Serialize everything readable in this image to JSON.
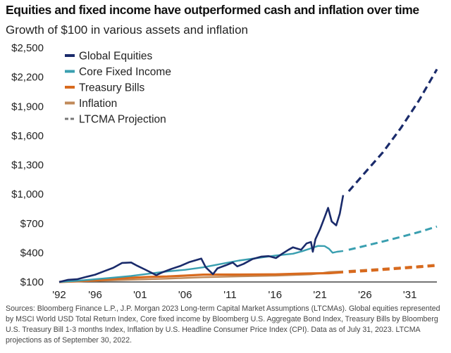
{
  "title": "Equities and fixed income have outperformed cash and inflation over time",
  "subtitle": "Growth of $100 in various assets and inflation",
  "footnote": "Sources: Bloomberg Finance L.P., J.P. Morgan 2023 Long-term Capital Market Assumptions (LTCMAs). Global equities represented by MSCI World USD Total Return Index, Core fixed income by Bloomberg U.S. Aggregate Bond Index, Treasury Bills by Bloomberg U.S. Treasury Bill 1-3 months Index, Inflation by U.S. Headline Consumer Price Index (CPI). Data as of July 31, 2023. LTCMA projections as of September 30, 2022.",
  "chart_data": {
    "type": "line",
    "title": "Equities and fixed income have outperformed cash and inflation over time",
    "subtitle": "Growth of $100 in various assets and inflation",
    "xlabel": "",
    "ylabel": "",
    "xlim": [
      1992,
      2034
    ],
    "ylim": [
      100,
      2500
    ],
    "x_ticks": [
      1992,
      1996,
      2001,
      2006,
      2011,
      2016,
      2021,
      2026,
      2031
    ],
    "x_tick_labels": [
      "'92",
      "'96",
      "'01",
      "'06",
      "'11",
      "'16",
      "'21",
      "'26",
      "'31"
    ],
    "y_ticks": [
      100,
      400,
      700,
      1000,
      1300,
      1600,
      1900,
      2200,
      2500
    ],
    "y_tick_labels": [
      "$100",
      "$400",
      "$700",
      "$1,000",
      "$1,300",
      "$1,600",
      "$1,900",
      "$2,200",
      "$2,500"
    ],
    "grid": false,
    "legend_position": "top-left",
    "series": [
      {
        "name": "Global Equities",
        "color": "#1a2b6b",
        "style": "solid",
        "x": [
          1992,
          1993,
          1994,
          1995,
          1996,
          1997,
          1998,
          1999,
          2000,
          2000.7,
          2001.5,
          2002.8,
          2003.5,
          2004.5,
          2005.5,
          2006.5,
          2007.8,
          2008.3,
          2009.1,
          2009.6,
          2010.5,
          2011.3,
          2011.8,
          2012.5,
          2013.5,
          2014.5,
          2015.3,
          2016.1,
          2016.8,
          2017.5,
          2018.0,
          2018.9,
          2019.5,
          2020.0,
          2020.2,
          2020.5,
          2021.0,
          2021.5,
          2021.9,
          2022.3,
          2022.8,
          2023.2,
          2023.58
        ],
        "y": [
          100,
          122,
          128,
          152,
          175,
          210,
          245,
          295,
          300,
          265,
          230,
          170,
          200,
          235,
          265,
          305,
          340,
          250,
          180,
          240,
          270,
          300,
          260,
          285,
          335,
          360,
          365,
          345,
          390,
          430,
          455,
          430,
          495,
          510,
          410,
          540,
          640,
          760,
          860,
          720,
          680,
          800,
          990
        ]
      },
      {
        "name": "Core Fixed Income",
        "color": "#3a9fb0",
        "style": "solid",
        "x": [
          1992,
          1994,
          1996,
          1998,
          2000,
          2002,
          2004,
          2006,
          2008,
          2010,
          2012,
          2014,
          2016,
          2018,
          2019,
          2020,
          2020.8,
          2021.5,
          2022.0,
          2022.4,
          2022.9,
          2023.58
        ],
        "y": [
          100,
          112,
          128,
          145,
          162,
          185,
          208,
          225,
          250,
          285,
          320,
          345,
          370,
          390,
          415,
          445,
          470,
          468,
          440,
          400,
          410,
          418
        ]
      },
      {
        "name": "Treasury Bills",
        "color": "#d86a1e",
        "style": "solid",
        "x": [
          1992,
          1994,
          1996,
          1998,
          2000,
          2002,
          2004,
          2006,
          2008,
          2009,
          2012,
          2016,
          2019,
          2020,
          2022,
          2023.58
        ],
        "y": [
          100,
          108,
          118,
          130,
          143,
          152,
          156,
          165,
          175,
          176,
          176,
          178,
          186,
          188,
          190,
          200
        ]
      },
      {
        "name": "Inflation",
        "color": "#c08a5a",
        "style": "solid",
        "x": [
          1992,
          1996,
          2000,
          2004,
          2008,
          2012,
          2016,
          2020,
          2021,
          2022,
          2023.58
        ],
        "y": [
          100,
          111,
          123,
          134,
          148,
          158,
          165,
          178,
          188,
          202,
          208
        ]
      },
      {
        "name": "LTCMA Projection",
        "color": "#777777",
        "style": "dashed",
        "segments": [
          {
            "of": "Global Equities",
            "color": "#1a2b6b",
            "x": [
              2024.2,
              2026,
              2028,
              2030,
              2032,
              2034
            ],
            "y": [
              1030,
              1220,
              1430,
              1680,
              1960,
              2280
            ]
          },
          {
            "of": "Core Fixed Income",
            "color": "#3a9fb0",
            "x": [
              2024.2,
              2026,
              2028,
              2030,
              2032,
              2034
            ],
            "y": [
              430,
              470,
              515,
              562,
              612,
              668
            ]
          },
          {
            "of": "Treasury Bills",
            "color": "#d86a1e",
            "x": [
              2024.2,
              2026,
              2028,
              2030,
              2032,
              2034
            ],
            "y": [
              205,
              215,
              228,
              242,
              256,
              270
            ]
          },
          {
            "of": "Inflation",
            "color": "#c08a5a",
            "x": [
              2024.2,
              2026,
              2028,
              2030,
              2032,
              2034
            ],
            "y": [
              212,
              222,
              234,
              246,
              260,
              275
            ]
          }
        ]
      }
    ]
  }
}
